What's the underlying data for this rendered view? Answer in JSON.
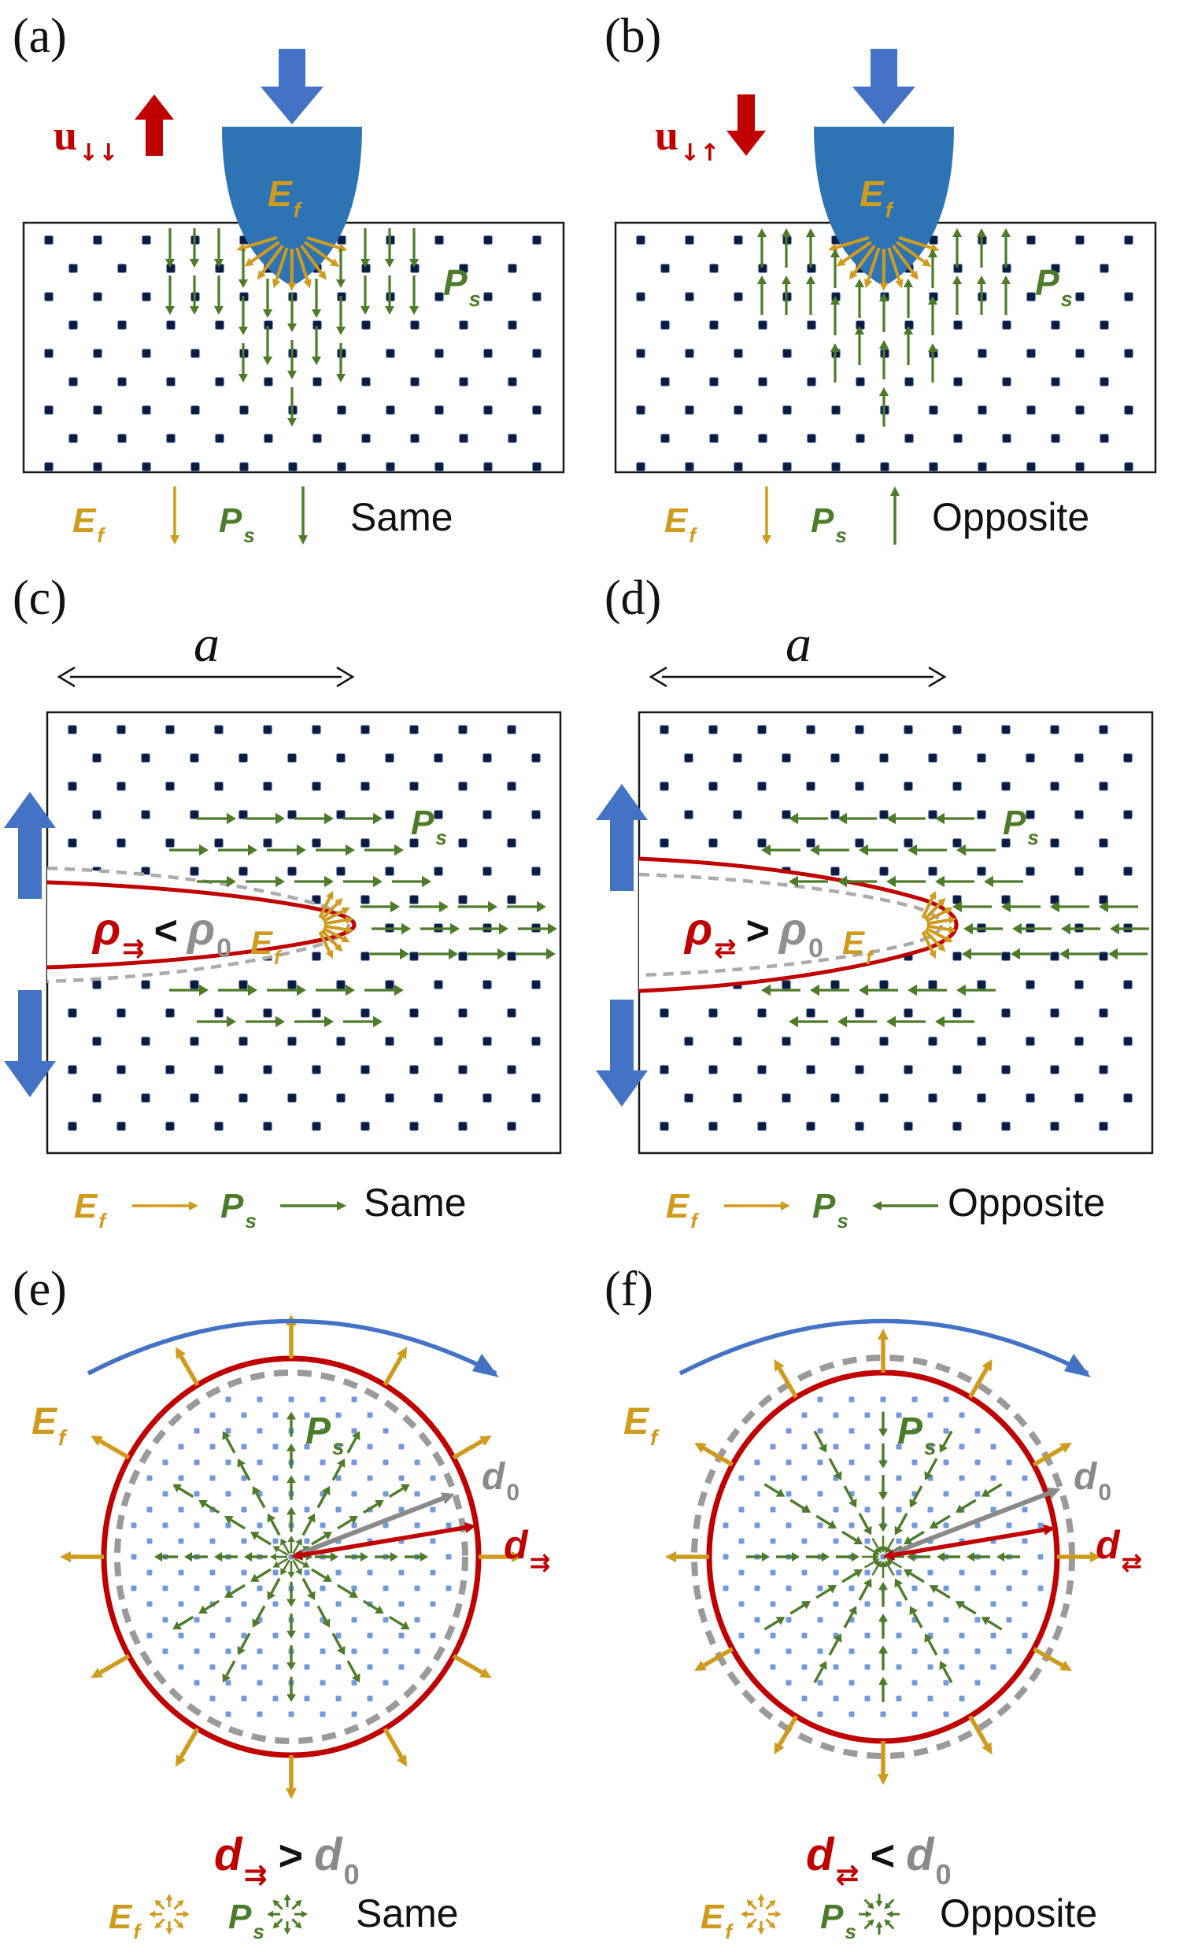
{
  "colors": {
    "red": "#C00000",
    "green": "#4e7b2a",
    "gold": "#cf9b1d",
    "blue": "#4472C4",
    "indenter": "#2E74B5",
    "crack_gray": "#ababab",
    "d0_gray": "#8a8a8a",
    "rho0_gray": "#8f8f8f",
    "dot_dark": "#0c1b40",
    "dot_light": "#5b87d5",
    "box_stroke": "#1b1b1b",
    "black": "#111111"
  },
  "labels": {
    "E": "E",
    "E_sub": "f",
    "P": "P",
    "P_sub": "s",
    "u": "u",
    "a": "a",
    "d": "d",
    "rho": "ρ",
    "zero": "0"
  },
  "panels": {
    "a": {
      "tag": "(a)",
      "u_sub": "↓↓",
      "field": "down",
      "polarization": "down",
      "relation": "Same"
    },
    "b": {
      "tag": "(b)",
      "u_sub": "↓↑",
      "field": "down",
      "polarization": "up",
      "relation": "Opposite"
    },
    "c": {
      "tag": "(c)",
      "crack_length": "a",
      "rho_sub": "⇉",
      "rho_op": "<",
      "crack": "sharpened",
      "field": "right",
      "polarization": "right",
      "relation": "Same"
    },
    "d": {
      "tag": "(d)",
      "crack_length": "a",
      "rho_sub": "⇄",
      "rho_op": ">",
      "crack": "blunted",
      "field": "right",
      "polarization": "left",
      "relation": "Opposite"
    },
    "e": {
      "tag": "(e)",
      "d_sub": "⇉",
      "d_op": ">",
      "size": "expanded",
      "field": "outward",
      "polarization": "outward",
      "relation": "Same"
    },
    "f": {
      "tag": "(f)",
      "d_sub": "⇄",
      "d_op": "<",
      "size": "contracted",
      "field": "outward",
      "polarization": "inward",
      "relation": "Opposite"
    }
  }
}
